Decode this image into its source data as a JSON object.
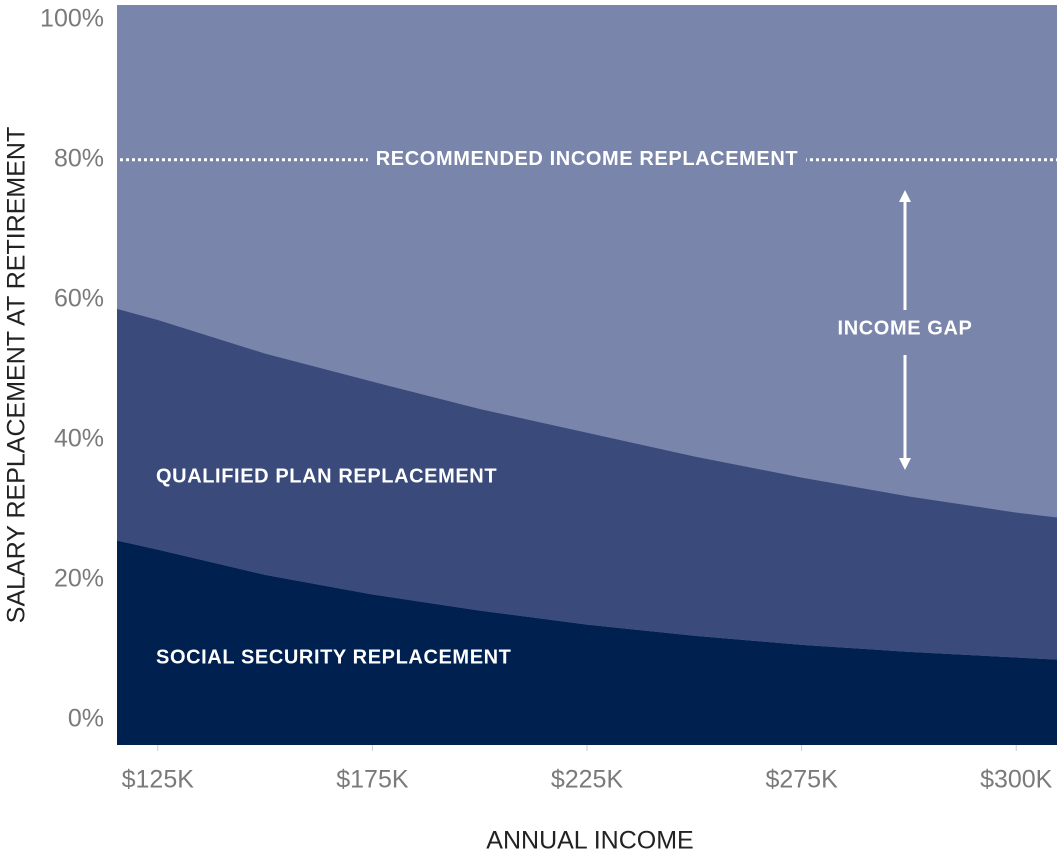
{
  "chart_data": {
    "type": "stacked_area",
    "x_axis_label": "ANNUAL INCOME",
    "y_axis_label": "SALARY REPLACEMENT AT RETIREMENT",
    "x": [
      -0.19,
      0,
      0.5,
      1,
      1.5,
      2,
      2.5,
      3,
      3.5,
      4,
      4.19
    ],
    "xlim": [
      -0.19,
      4.19
    ],
    "xticks": [
      {
        "value": 0,
        "label": "$125K"
      },
      {
        "value": 1,
        "label": "$175K"
      },
      {
        "value": 2,
        "label": "$225K"
      },
      {
        "value": 3,
        "label": "$275K"
      },
      {
        "value": 4,
        "label": "$300K"
      }
    ],
    "ylim": [
      -3.6,
      102.1
    ],
    "yticks": [
      {
        "value": 0,
        "label": "0%"
      },
      {
        "value": 20,
        "label": "20%"
      },
      {
        "value": 40,
        "label": "40%"
      },
      {
        "value": 60,
        "label": "60%"
      },
      {
        "value": 80,
        "label": "80%"
      },
      {
        "value": 100,
        "label": "100%"
      }
    ],
    "plot_color": "#7985ab",
    "series": [
      {
        "name": "SOCIAL SECURITY REPLACEMENT",
        "color": "#00204f",
        "values": [
          25.6,
          24.3,
          20.7,
          17.9,
          15.6,
          13.6,
          12.0,
          10.7,
          9.7,
          8.9,
          8.6
        ]
      },
      {
        "name": "QUALIFIED PLAN REPLACEMENT",
        "color": "#3a4b7b",
        "values": [
          33.1,
          32.8,
          31.6,
          30.4,
          28.8,
          27.4,
          25.6,
          23.9,
          22.2,
          20.7,
          20.3
        ]
      }
    ],
    "reference_line": {
      "value": 80,
      "label": "RECOMMENDED INCOME REPLACEMENT"
    },
    "annotation": "INCOME GAP"
  }
}
